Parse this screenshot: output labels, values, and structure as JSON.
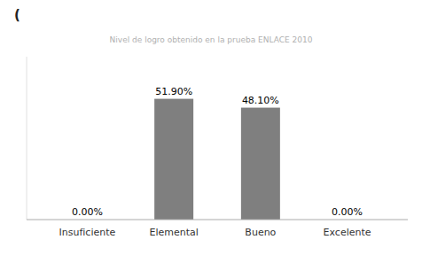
{
  "chart_data": {
    "type": "bar",
    "title": "(",
    "subtitle": "Nivel  de  logro  obtenido  en  la  prueba  ENLACE  2010",
    "categories": [
      "Insuficiente",
      "Elemental",
      "Bueno",
      "Excelente"
    ],
    "values": [
      0.0,
      51.9,
      48.1,
      0.0
    ],
    "value_labels": [
      "0.00%",
      "51.90%",
      "48.10%",
      "0.00%"
    ],
    "data_labels": true,
    "color": "#7f7f7f",
    "ylim": [
      0,
      70
    ],
    "tick_labels": "x",
    "grid": false
  }
}
